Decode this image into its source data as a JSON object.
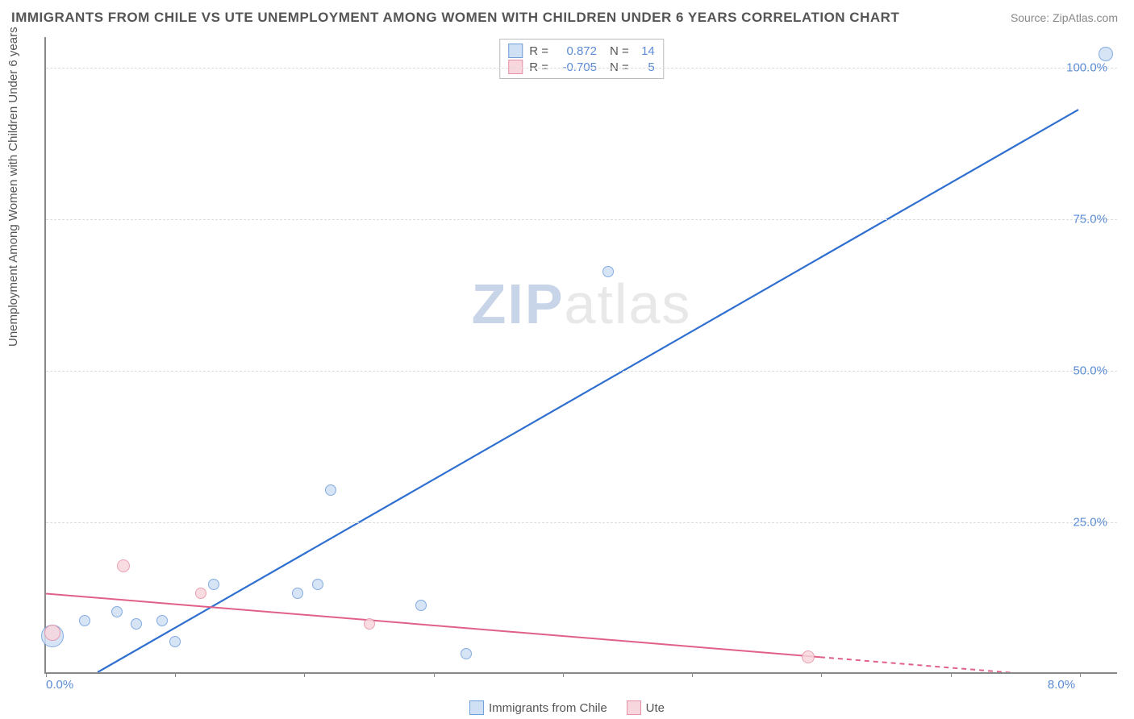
{
  "title": "IMMIGRANTS FROM CHILE VS UTE UNEMPLOYMENT AMONG WOMEN WITH CHILDREN UNDER 6 YEARS CORRELATION CHART",
  "source_prefix": "Source: ",
  "source": "ZipAtlas.com",
  "ylabel": "Unemployment Among Women with Children Under 6 years",
  "watermark_a": "ZIP",
  "watermark_b": "atlas",
  "chart": {
    "type": "scatter-correlation",
    "xlim": [
      0.0,
      8.3
    ],
    "ylim": [
      0.0,
      105.0
    ],
    "xticks": [
      0.0,
      1.0,
      2.0,
      3.0,
      4.0,
      5.0,
      6.0,
      7.0,
      8.0
    ],
    "yticks": [
      25.0,
      50.0,
      75.0,
      100.0
    ],
    "xtick_labels": {
      "0": "0.0%",
      "8": "8.0%"
    },
    "ytick_label_suffix": "%",
    "grid_color": "#dddddd",
    "axis_color": "#888888",
    "tick_label_color": "#5b8bd4",
    "background_color": "#ffffff"
  },
  "series": [
    {
      "name": "Immigrants from Chile",
      "fill": "#cfe0f5",
      "stroke": "#6f9edb",
      "trend_color": "#2f6fd0",
      "trend_width": 2.2,
      "R": "0.872",
      "N": "14",
      "trend": {
        "x1": 0.4,
        "y1": 0.0,
        "x2": 8.0,
        "y2": 93.0,
        "dashed": false
      },
      "points": [
        {
          "x": 0.05,
          "y": 6.0,
          "r": 14
        },
        {
          "x": 0.3,
          "y": 8.5,
          "r": 7
        },
        {
          "x": 0.55,
          "y": 10.0,
          "r": 7
        },
        {
          "x": 0.7,
          "y": 8.0,
          "r": 7
        },
        {
          "x": 0.9,
          "y": 8.5,
          "r": 7
        },
        {
          "x": 1.0,
          "y": 5.0,
          "r": 7
        },
        {
          "x": 1.3,
          "y": 14.5,
          "r": 7
        },
        {
          "x": 1.95,
          "y": 13.0,
          "r": 7
        },
        {
          "x": 2.1,
          "y": 14.5,
          "r": 7
        },
        {
          "x": 2.2,
          "y": 30.0,
          "r": 7
        },
        {
          "x": 2.9,
          "y": 11.0,
          "r": 7
        },
        {
          "x": 3.25,
          "y": 3.0,
          "r": 7
        },
        {
          "x": 4.35,
          "y": 66.0,
          "r": 7
        },
        {
          "x": 8.2,
          "y": 102.0,
          "r": 9
        }
      ]
    },
    {
      "name": "Ute",
      "fill": "#f7d6dd",
      "stroke": "#e890a6",
      "trend_color": "#e06088",
      "trend_width": 2.0,
      "R": "-0.705",
      "N": "5",
      "trend": {
        "x1": 0.0,
        "y1": 13.0,
        "x2": 6.0,
        "y2": 2.5,
        "dashed": false
      },
      "trend_ext": {
        "x1": 6.0,
        "y1": 2.5,
        "x2": 8.3,
        "y2": -1.5,
        "dashed": true
      },
      "points": [
        {
          "x": 0.05,
          "y": 6.5,
          "r": 10
        },
        {
          "x": 0.6,
          "y": 17.5,
          "r": 8
        },
        {
          "x": 1.2,
          "y": 13.0,
          "r": 7
        },
        {
          "x": 2.5,
          "y": 8.0,
          "r": 7
        },
        {
          "x": 5.9,
          "y": 2.5,
          "r": 8
        }
      ]
    }
  ],
  "stats_legend": {
    "r_label": "R =",
    "n_label": "N ="
  },
  "bottom_legend": [
    "Immigrants from Chile",
    "Ute"
  ]
}
